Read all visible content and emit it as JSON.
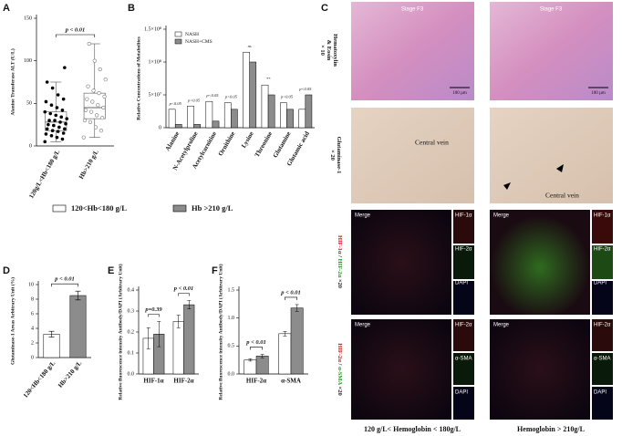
{
  "chart_data": [
    {
      "type": "box",
      "panel": "A",
      "y_label": "Alanine Transferase ALT (U/L)",
      "categories": [
        "120g/L<Hb<180 g/L",
        "Hb>210 g/L"
      ],
      "boxes": [
        {
          "min": 5,
          "q1": 18,
          "median": 28,
          "q3": 40,
          "max": 75
        },
        {
          "min": 10,
          "q1": 32,
          "median": 45,
          "q3": 62,
          "max": 120
        }
      ],
      "points": [
        [
          5,
          8,
          10,
          12,
          14,
          15,
          17,
          18,
          20,
          20,
          22,
          24,
          25,
          26,
          28,
          30,
          30,
          32,
          34,
          36,
          38,
          40,
          42,
          45,
          48,
          52,
          55,
          60,
          68,
          75,
          92
        ],
        [
          10,
          18,
          22,
          28,
          30,
          33,
          36,
          40,
          42,
          45,
          48,
          52,
          55,
          58,
          62,
          65,
          70,
          78,
          90,
          100,
          120
        ]
      ],
      "colors": [
        "#000000",
        "#777777"
      ],
      "ylim": [
        0,
        150
      ],
      "yticks": [
        0,
        50,
        100,
        150
      ],
      "significance": [
        "p < 0.01"
      ]
    },
    {
      "type": "bar",
      "panel": "B",
      "y_label": "Relative Concentrations of Metabolites",
      "categories": [
        "Alanine",
        "N-Acetylproline",
        "Acetylcarnitine",
        "Ornithine",
        "Lysine",
        "Threonine",
        "Glutamine",
        "Glutamic acid"
      ],
      "series": [
        {
          "name": "NASH",
          "color": "#ffffff",
          "values": [
            28000000,
            33000000,
            40000000,
            38000000,
            115000000,
            65000000,
            38000000,
            28000000
          ]
        },
        {
          "name": "NASH+CMS",
          "color": "#8c8c8c",
          "values": [
            5000000,
            5000000,
            10000000,
            28000000,
            100000000,
            50000000,
            28000000,
            50000000
          ]
        }
      ],
      "ylim": [
        0,
        150000000
      ],
      "yticks": [
        0,
        {
          "value": 50000000,
          "label": "5×10⁷"
        },
        {
          "value": 100000000,
          "label": "1×10⁸"
        },
        {
          "value": 150000000,
          "label": "1.5×10⁸"
        }
      ],
      "significance": [
        "p<0.05",
        "p<0.05",
        "p<0.05",
        "p<0.05",
        "ns",
        "**",
        "p<0.05",
        "p<0.05"
      ]
    },
    {
      "type": "bar",
      "panel": "D",
      "y_label": "Glutaminase-1 Areas Arbitrary Unit (%)",
      "categories": [
        "120<Hb<180 g/L",
        "Hb>210 g/L"
      ],
      "values": [
        3.2,
        8.5
      ],
      "errors": [
        0.4,
        0.6
      ],
      "colors": [
        "#ffffff",
        "#8c8c8c"
      ],
      "ylim": [
        0,
        10
      ],
      "yticks": [
        0,
        2,
        4,
        6,
        8,
        10
      ],
      "significance": [
        "p < 0.01"
      ]
    },
    {
      "type": "bar",
      "panel": "E",
      "y_label": "Relative fluorescence intensity Antibody/DAPI (Arbitrary Unit)",
      "categories": [
        "HIF-1α",
        "HIF-2α"
      ],
      "series": [
        {
          "color": "#ffffff",
          "values": [
            0.17,
            0.25
          ],
          "errors": [
            0.05,
            0.03
          ]
        },
        {
          "color": "#8c8c8c",
          "values": [
            0.19,
            0.33
          ],
          "errors": [
            0.06,
            0.02
          ]
        }
      ],
      "ylim": [
        0,
        0.4
      ],
      "yticks": [
        {
          "value": 0,
          "label": "0.0"
        },
        0.1,
        0.2,
        0.3,
        0.4
      ],
      "significance": [
        "p=0.39",
        "p < 0.01"
      ]
    },
    {
      "type": "bar",
      "panel": "F",
      "y_label": "Relative fluorescence intensity Antibody/DAPI (Arbitrary Unit)",
      "categories": [
        "HIF-2α",
        "α-SMA"
      ],
      "series": [
        {
          "color": "#ffffff",
          "values": [
            0.25,
            0.72
          ],
          "errors": [
            0.02,
            0.04
          ]
        },
        {
          "color": "#8c8c8c",
          "values": [
            0.32,
            1.18
          ],
          "errors": [
            0.03,
            0.06
          ]
        }
      ],
      "ylim": [
        0,
        1.5
      ],
      "yticks": [
        {
          "value": 0,
          "label": "0.0"
        },
        0.5,
        {
          "value": 1,
          "label": "1.0"
        },
        1.5
      ],
      "significance": [
        "p < 0.01",
        "p < 0.01"
      ]
    }
  ],
  "legend": [
    {
      "name": "120<Hb<180 g/L",
      "color": "#ffffff"
    },
    {
      "name": "Hb >210 g/L",
      "color": "#8c8c8c"
    }
  ],
  "image_panel": {
    "panel": "C",
    "he_label": [
      "Hematoxylin",
      "& Eosin",
      "× 10"
    ],
    "stage": "Stage F3",
    "scale": "100 µm",
    "gls_label": [
      "Glutaminase-1",
      "× 20"
    ],
    "central_vein": "Central vein",
    "fluor1_label": [
      "HIF-1α",
      " / ",
      "HIF-2α",
      " ×20"
    ],
    "fluor1_insets": [
      "Merge",
      "HIF-1α",
      "HIF-2α",
      "DAPI"
    ],
    "fluor2_label": [
      "HIF-2α",
      " / ",
      "α-SMA",
      " ×20"
    ],
    "fluor2_insets": [
      "Merge",
      "HIF-2α",
      "α-SMA",
      "DAPI"
    ],
    "column_labels": [
      "120 g/L< Hemoglobin < 180g/L",
      "Hemoglobin > 210g/L"
    ]
  }
}
